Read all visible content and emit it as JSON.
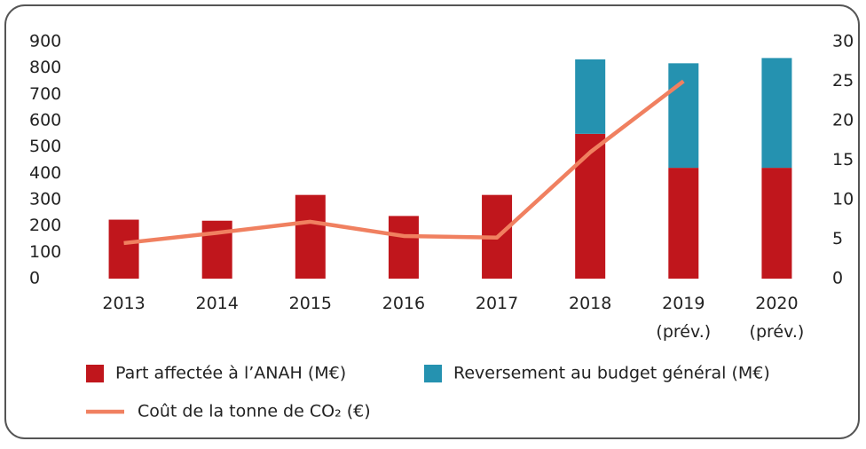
{
  "chart_data": {
    "type": "bar",
    "stacked": true,
    "categories": [
      "2013",
      "2014",
      "2015",
      "2016",
      "2017",
      "2018",
      "2019\n(prév.)",
      "2020\n(prév.)"
    ],
    "series": [
      {
        "name": "Part affectée à l’ANAH (M€)",
        "type": "bar",
        "color": "#c0161c",
        "values": [
          224,
          220,
          318,
          238,
          318,
          550,
          421,
          421
        ]
      },
      {
        "name": "Reversement au budget général (M€)",
        "type": "bar",
        "color": "#2592b0",
        "values": [
          null,
          null,
          null,
          null,
          null,
          283,
          397,
          417
        ]
      },
      {
        "name": "Coût de la tonne de CO₂ (€)",
        "type": "line",
        "axis": "y2",
        "color": "#f08060",
        "values": [
          4.5,
          5.8,
          7.2,
          5.4,
          5.2,
          16,
          25,
          null
        ]
      }
    ],
    "ylim": [
      0,
      900
    ],
    "yticks": [
      0,
      100,
      200,
      300,
      400,
      500,
      600,
      700,
      800,
      900
    ],
    "y2lim": [
      0,
      30
    ],
    "y2ticks": [
      0,
      5,
      10,
      15,
      20,
      25,
      30
    ]
  }
}
